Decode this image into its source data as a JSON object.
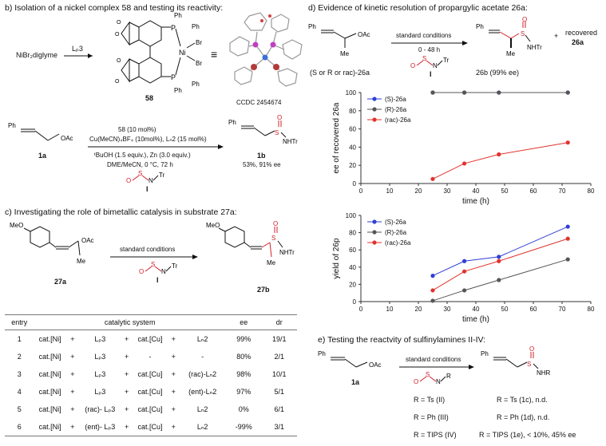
{
  "section_b": {
    "header": "b) Isolation of a nickel complex 58 and testing its reactivity:",
    "precursor": "NiBr₂diglyme",
    "ligand": "Lₚ3",
    "complex_label": "58",
    "ccdc": "CCDC 2454674",
    "ph_labels": [
      "Ph",
      "Ph",
      "Ph",
      "Ph"
    ],
    "br_labels": [
      "Br",
      "Br"
    ],
    "atom_labels": [
      "P",
      "P",
      "Ni"
    ],
    "reaction": {
      "substrate_label": "1a",
      "substrate_ph": "Ph",
      "substrate_oac": "OAc",
      "conditions": [
        "58 (10 mol%)",
        "Cu(MeCN)₄BF₄ (10mol%), Lₙ2 (15 mol%)",
        "ᵗBuOH (1.5 equiv.), Zn (3.0 equiv.)",
        "DME/MeCN, 0 °C, 72 h"
      ],
      "reagent_label": "I",
      "reagent_atoms": [
        "O",
        "S",
        "N",
        "Tr"
      ],
      "product_label": "1b",
      "product_ph": "Ph",
      "product_s": "S",
      "product_o": "O",
      "product_nhtr": "NHTr",
      "result": "53%, 91% ee"
    }
  },
  "section_c": {
    "header": "c) Investigating the role of bimetallic catalysis in substrate 27a:",
    "substrate_label": "27a",
    "substrate_meo": "MeO",
    "substrate_oac": "OAc",
    "substrate_me": "Me",
    "conditions": "standard conditions",
    "reagent_label": "I",
    "reagent_atoms": [
      "O",
      "S",
      "N",
      "Tr"
    ],
    "product_label": "27b",
    "product_meo": "MeO",
    "product_s": "S",
    "product_o": "O",
    "product_nhtr": "NHTr",
    "product_me": "Me",
    "table": {
      "headers": [
        "entry",
        "catalytic system",
        "ee",
        "dr"
      ],
      "rows": [
        [
          "1",
          "cat.[Ni]",
          "+",
          "Lₚ3",
          "+",
          "cat.[Cu]",
          "+",
          "Lₙ2",
          "99%",
          "19/1"
        ],
        [
          "2",
          "cat.[Ni]",
          "+",
          "Lₚ3",
          "+",
          "-",
          "+",
          "-",
          "80%",
          "2/1"
        ],
        [
          "3",
          "cat.[Ni]",
          "+",
          "Lₚ3",
          "+",
          "cat.[Cu]",
          "+",
          "(rac)-Lₙ2",
          "98%",
          "10/1"
        ],
        [
          "4",
          "cat.[Ni]",
          "+",
          "Lₚ3",
          "+",
          "cat.[Cu]",
          "+",
          "(ent)-Lₙ2",
          "97%",
          "5/1"
        ],
        [
          "5",
          "cat.[Ni]",
          "+",
          "(rac)- Lₚ3",
          "+",
          "cat.[Cu]",
          "+",
          "Lₙ2",
          "0%",
          "6/1"
        ],
        [
          "6",
          "cat.[Ni]",
          "+",
          "(ent)- Lₚ3",
          "+",
          "cat.[Cu]",
          "+",
          "Lₙ2",
          "-99%",
          "3/1"
        ]
      ]
    }
  },
  "section_d": {
    "header": "d) Evidence of kinetic resolution of propargylic acetate 26a:",
    "substrate_ph": "Ph",
    "substrate_oac": "OAc",
    "substrate_me": "Me",
    "substrate_label": "(S or R or rac)-26a",
    "conditions": "standard conditions",
    "time_range": "0 - 48 h",
    "reagent_label": "I",
    "reagent_atoms": [
      "O",
      "S",
      "N",
      "Tr"
    ],
    "product_ph": "Ph",
    "product_s": "S",
    "product_o": "O",
    "product_nhtr": "NHTr",
    "product_me": "Me",
    "product_label": "26b (99% ee)",
    "plus": "+",
    "recovered": "recovered",
    "recovered_label": "26a"
  },
  "section_e": {
    "header": "e) Testing the reactvity of sulfinylamines II-IV:",
    "substrate_ph": "Ph",
    "substrate_oac": "OAc",
    "substrate_label": "1a",
    "conditions": "standard conditions",
    "reagent_atoms": [
      "O",
      "S",
      "N",
      "R"
    ],
    "product_ph": "Ph",
    "product_s": "S",
    "product_o": "O",
    "product_nhr": "NHR",
    "rows": [
      {
        "left": "R = Ts (II)",
        "right": "R = Ts (1c), n.d."
      },
      {
        "left": "R = Ph (III)",
        "right": "R = Ph (1d), n.d."
      },
      {
        "left": "R = TIPS (IV)",
        "right": "R = TIPS (1e), < 10%, 45% ee"
      }
    ]
  },
  "chart_data": [
    {
      "type": "line",
      "xlabel": "time (h)",
      "ylabel": "ee of recovered 26a",
      "xlim": [
        0,
        80
      ],
      "ylim": [
        0,
        100
      ],
      "xticks": [
        0,
        10,
        20,
        30,
        40,
        50,
        60,
        70,
        80
      ],
      "yticks": [
        0,
        20,
        40,
        60,
        80,
        100
      ],
      "legend": "top-left",
      "series": [
        {
          "name": "(S)-26a",
          "color": "#2f3fd6",
          "x": [
            25,
            36,
            48,
            72
          ],
          "y": [
            100,
            100,
            100,
            100
          ]
        },
        {
          "name": "(R)-26a",
          "color": "#555555",
          "x": [
            25,
            36,
            48,
            72
          ],
          "y": [
            100,
            100,
            100,
            100
          ]
        },
        {
          "name": "(rac)-26a",
          "color": "#e0332e",
          "x": [
            25,
            36,
            48,
            72
          ],
          "y": [
            5,
            22,
            32,
            45
          ]
        }
      ]
    },
    {
      "type": "line",
      "xlabel": "time (h)",
      "ylabel": "yield of 26p",
      "xlim": [
        0,
        80
      ],
      "ylim": [
        0,
        100
      ],
      "xticks": [
        0,
        10,
        20,
        30,
        40,
        50,
        60,
        70,
        80
      ],
      "yticks": [
        0,
        20,
        40,
        60,
        80,
        100
      ],
      "legend": "top-left",
      "series": [
        {
          "name": "(S)-26a",
          "color": "#2f3fd6",
          "x": [
            25,
            36,
            48,
            72
          ],
          "y": [
            30,
            47,
            52,
            87
          ]
        },
        {
          "name": "(R)-26a",
          "color": "#555555",
          "x": [
            25,
            36,
            48,
            72
          ],
          "y": [
            1,
            13,
            25,
            49
          ]
        },
        {
          "name": "(rac)-26a",
          "color": "#e0332e",
          "x": [
            25,
            36,
            48,
            72
          ],
          "y": [
            13,
            35,
            47,
            73
          ]
        }
      ]
    }
  ]
}
